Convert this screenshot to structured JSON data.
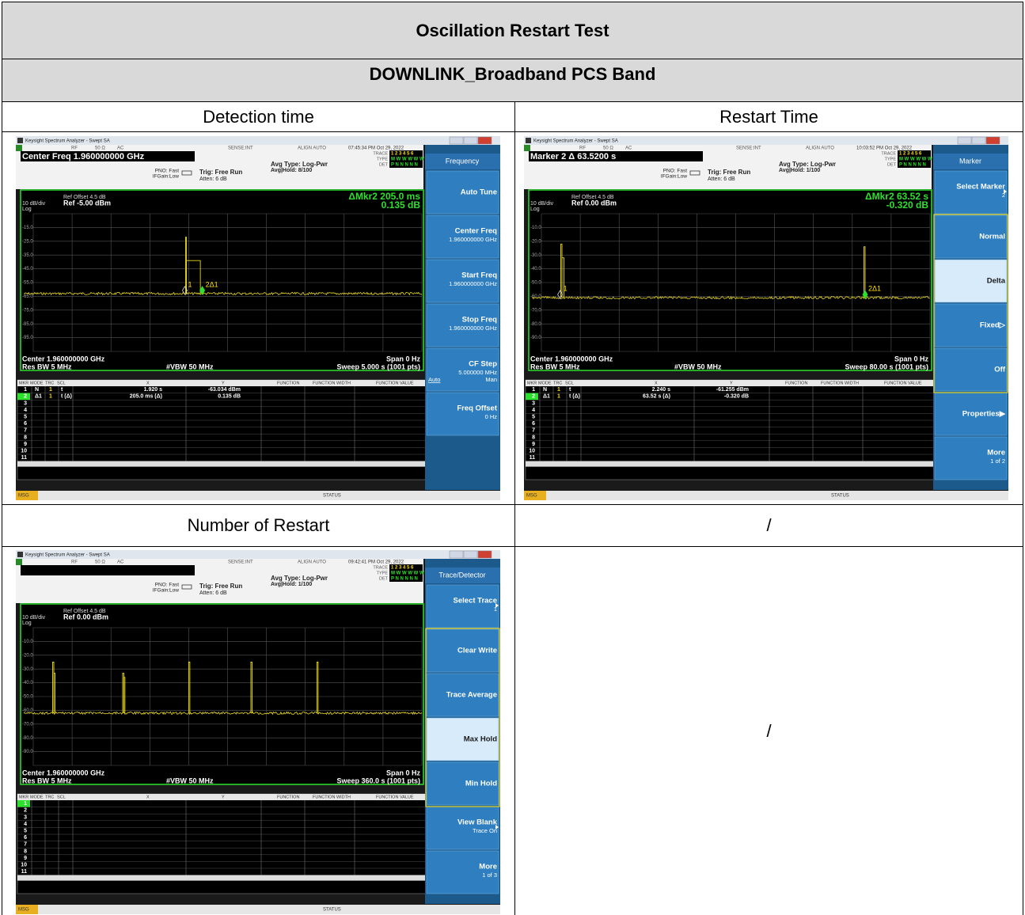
{
  "table": {
    "title": "Oscillation Restart Test",
    "subtitle": "DOWNLINK_Broadband PCS Band",
    "rows": [
      [
        "Detection time",
        "Restart Time"
      ],
      [
        "Number of Restart",
        "/"
      ]
    ],
    "empty_cell": "/"
  },
  "screens": [
    {
      "app_title": "Keysight Spectrum Analyzer - Swept SA",
      "status_top": [
        "RF",
        "50 Ω",
        "AC",
        "SENSE:INT",
        "ALIGN AUTO"
      ],
      "time": "07:45:34 PM Oct 29, 2022",
      "active": "Center Freq 1.960000000 GHz",
      "pno": "PNO: Fast",
      "ifgain": "IFGain:Low",
      "trig": "Trig: Free Run",
      "atten": "Atten: 6 dB",
      "avg_type": "Avg Type: Log-Pwr",
      "avg_hold": "Avg|Hold: 8/100",
      "trace_keys": [
        "TRACE",
        "TYPE",
        "DET"
      ],
      "trace_vals": [
        "1 2 3 4 5 6",
        "M W W W W W",
        "P N N N N N"
      ],
      "ref_offset": "Ref Offset 4.5 dB",
      "scale": "10 dB/div",
      "ref": "Ref -5.00 dBm",
      "log": "Log",
      "readout": [
        "ΔMkr2 205.0 ms",
        "0.135 dB"
      ],
      "ylabels": [
        "-15.0",
        "-25.0",
        "-35.0",
        "-45.0",
        "-55.0",
        "-65.0",
        "-75.0",
        "-85.0",
        "-95.0"
      ],
      "marker_labels": [
        "1",
        "2Δ1"
      ],
      "center": "Center 1.960000000 GHz",
      "span": "Span 0 Hz",
      "rbw": "Res BW 5 MHz",
      "vbw": "#VBW 50 MHz",
      "sweep": "Sweep  5.000 s (1001 pts)",
      "columns": [
        "MKR",
        "MODE",
        "TRC",
        "SCL",
        "X",
        "Y",
        "FUNCTION",
        "FUNCTION WIDTH",
        "FUNCTION VALUE"
      ],
      "row_numbers": [
        "1",
        "2",
        "3",
        "4",
        "5",
        "6",
        "7",
        "8",
        "9",
        "10",
        "11"
      ],
      "marker_rows": [
        [
          "N",
          "1",
          "t",
          "1.920 s",
          "-63.034 dBm"
        ],
        [
          "Δ1",
          "1",
          "t (Δ)",
          "205.0 ms (Δ)",
          "0.135 dB"
        ]
      ],
      "msg": "MSG",
      "status": "STATUS",
      "panel_title": "Frequency",
      "softkeys": [
        {
          "label": "Auto Tune"
        },
        {
          "label": "Center Freq",
          "sub": "1.960000000 GHz"
        },
        {
          "label": "Start Freq",
          "sub": "1.960000000 GHz"
        },
        {
          "label": "Stop Freq",
          "sub": "1.960000000 GHz"
        },
        {
          "label": "CF Step",
          "sub": "5.000000 MHz",
          "options": [
            "Auto",
            "Man"
          ]
        },
        {
          "label": "Freq Offset",
          "sub": "0 Hz"
        }
      ]
    },
    {
      "app_title": "Keysight Spectrum Analyzer - Swept SA",
      "status_top": [
        "RF",
        "50 Ω",
        "AC",
        "SENSE:INT",
        "ALIGN AUTO"
      ],
      "time": "10:03:52 PM Oct 29, 2022",
      "active": "Marker 2 Δ 63.5200 s",
      "pno": "PNO: Fast",
      "ifgain": "IFGain:Low",
      "trig": "Trig: Free Run",
      "atten": "Atten: 6 dB",
      "avg_type": "Avg Type: Log-Pwr",
      "avg_hold": "Avg|Hold: 1/100",
      "trace_keys": [
        "TRACE",
        "TYPE",
        "DET"
      ],
      "trace_vals": [
        "1 2 3 4 5 6",
        "M W W W W W",
        "P N N N N N"
      ],
      "ref_offset": "Ref Offset 4.5 dB",
      "scale": "10 dB/div",
      "ref": "Ref 0.00 dBm",
      "log": "Log",
      "readout": [
        "ΔMkr2 63.52 s",
        "-0.320 dB"
      ],
      "ylabels": [
        "-10.0",
        "-20.0",
        "-30.0",
        "-40.0",
        "-50.0",
        "-60.0",
        "-70.0",
        "-80.0",
        "-90.0"
      ],
      "marker_labels": [
        "1",
        "2Δ1"
      ],
      "center": "Center 1.960000000 GHz",
      "span": "Span 0 Hz",
      "rbw": "Res BW 5 MHz",
      "vbw": "#VBW 50 MHz",
      "sweep": "Sweep  80.00 s (1001 pts)",
      "columns": [
        "MKR",
        "MODE",
        "TRC",
        "SCL",
        "X",
        "Y",
        "FUNCTION",
        "FUNCTION WIDTH",
        "FUNCTION VALUE"
      ],
      "row_numbers": [
        "1",
        "2",
        "3",
        "4",
        "5",
        "6",
        "7",
        "8",
        "9",
        "10",
        "11"
      ],
      "marker_rows": [
        [
          "N",
          "1",
          "t",
          "2.240 s",
          "-61.255 dBm"
        ],
        [
          "Δ1",
          "1",
          "t (Δ)",
          "63.52 s (Δ)",
          "-0.320 dB"
        ]
      ],
      "msg": "MSG",
      "status": "STATUS",
      "panel_title": "Marker",
      "selected_key": 2,
      "softkeys": [
        {
          "label": "Select Marker",
          "sub": "2",
          "arrow": true
        },
        {
          "label": "Normal"
        },
        {
          "label": "Delta"
        },
        {
          "label": "Fixed▷"
        },
        {
          "label": "Off"
        },
        {
          "label": "Properties▶"
        },
        {
          "label": "More",
          "sub": "1 of 2"
        }
      ]
    },
    {
      "app_title": "Keysight Spectrum Analyzer - Swept SA",
      "status_top": [
        "RF",
        "50 Ω",
        "AC",
        "SENSE:INT",
        "ALIGN AUTO"
      ],
      "time": "09:42:41 PM Oct 29, 2022",
      "pno": "PNO: Fast",
      "ifgain": "IFGain:Low",
      "trig": "Trig: Free Run",
      "atten": "Atten: 6 dB",
      "avg_type": "Avg Type: Log-Pwr",
      "avg_hold": "Avg|Hold: 1/100",
      "trace_keys": [
        "TRACE",
        "TYPE",
        "DET"
      ],
      "trace_vals": [
        "1 2 3 4 5 6",
        "M W W W W W",
        "P N N N N N"
      ],
      "ref_offset": "Ref Offset 4.5 dB",
      "scale": "10 dB/div",
      "ref": "Ref 0.00 dBm",
      "log": "Log",
      "ylabels": [
        "-10.0",
        "-20.0",
        "-30.0",
        "-40.0",
        "-50.0",
        "-60.0",
        "-70.0",
        "-80.0",
        "-90.0"
      ],
      "center": "Center 1.960000000 GHz",
      "span": "Span 0 Hz",
      "rbw": "Res BW 5 MHz",
      "vbw": "#VBW 50 MHz",
      "sweep": "Sweep  360.0 s (1001 pts)",
      "columns": [
        "MKR",
        "MODE",
        "TRC",
        "SCL",
        "X",
        "Y",
        "FUNCTION",
        "FUNCTION WIDTH",
        "FUNCTION VALUE"
      ],
      "row_numbers": [
        "1",
        "2",
        "3",
        "4",
        "5",
        "6",
        "7",
        "8",
        "9",
        "10",
        "11"
      ],
      "marker_rows": [],
      "msg": "MSG",
      "status": "STATUS",
      "panel_title": "Trace/Detector",
      "selected_key": 3,
      "softkeys": [
        {
          "label": "Select Trace",
          "sub": "1",
          "arrow": true
        },
        {
          "label": "Clear Write"
        },
        {
          "label": "Trace Average"
        },
        {
          "label": "Max Hold"
        },
        {
          "label": "Min Hold"
        },
        {
          "label": "View Blank",
          "sub": "Trace On",
          "arrow": true
        },
        {
          "label": "More",
          "sub": "1 of 3"
        }
      ]
    }
  ]
}
